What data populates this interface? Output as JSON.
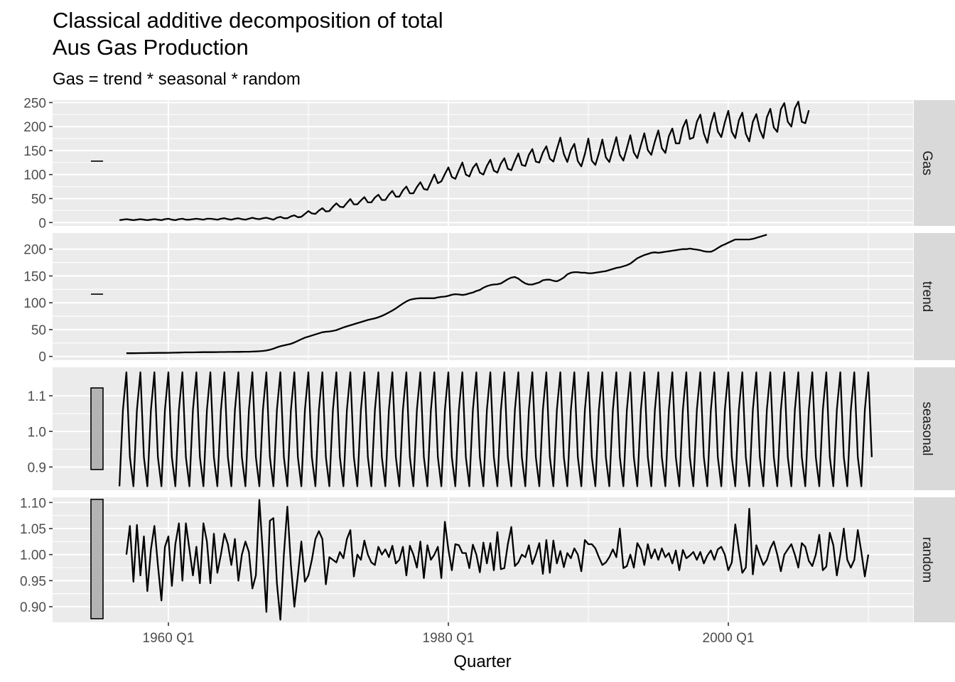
{
  "chart_data": {
    "type": "line",
    "title_lines": [
      "Classical additive decomposition of total",
      "Aus Gas Production"
    ],
    "subtitle": "Gas = trend * seasonal * random",
    "xlabel": "Quarter",
    "x_ticks": [
      "1960 Q1",
      "1980 Q1",
      "2000 Q1"
    ],
    "x_tick_years": [
      1960,
      1980,
      2000
    ],
    "x_range": [
      "1956 Q1",
      "2010 Q2"
    ],
    "series": [
      {
        "name": "Gas",
        "yticks": [
          0,
          50,
          100,
          150,
          200,
          250
        ],
        "ylim": [
          -7,
          255
        ],
        "values": [
          5,
          6,
          7,
          6,
          5,
          6,
          7,
          6,
          5,
          6,
          7,
          6,
          5,
          7,
          8,
          6,
          5,
          7,
          8,
          6,
          6,
          7,
          8,
          7,
          6,
          8,
          8,
          7,
          6,
          8,
          9,
          7,
          6,
          8,
          9,
          7,
          6,
          8,
          10,
          8,
          7,
          9,
          10,
          8,
          6,
          10,
          12,
          9,
          9,
          13,
          15,
          11,
          12,
          18,
          24,
          19,
          18,
          25,
          30,
          23,
          24,
          33,
          40,
          33,
          32,
          41,
          49,
          38,
          38,
          46,
          53,
          42,
          42,
          52,
          58,
          47,
          47,
          58,
          66,
          54,
          54,
          67,
          75,
          61,
          61,
          74,
          84,
          70,
          68,
          84,
          100,
          82,
          86,
          101,
          115,
          95,
          91,
          109,
          125,
          100,
          96,
          114,
          123,
          104,
          100,
          118,
          131,
          108,
          104,
          123,
          134,
          112,
          109,
          128,
          144,
          120,
          118,
          141,
          153,
          127,
          125,
          146,
          159,
          133,
          127,
          153,
          177,
          143,
          126,
          151,
          164,
          128,
          117,
          143,
          175,
          129,
          120,
          144,
          173,
          136,
          126,
          152,
          178,
          141,
          129,
          155,
          182,
          146,
          134,
          161,
          186,
          151,
          141,
          169,
          192,
          155,
          145,
          180,
          196,
          165,
          165,
          198,
          214,
          174,
          177,
          210,
          225,
          186,
          166,
          205,
          229,
          190,
          178,
          209,
          233,
          189,
          176,
          213,
          229,
          185,
          169,
          210,
          226,
          193,
          176,
          219,
          237,
          198,
          189,
          236,
          249,
          210,
          200,
          238,
          252,
          210,
          207,
          234
        ],
        "scale_bar": {
          "low": 128,
          "high": 128
        }
      },
      {
        "name": "trend",
        "yticks": [
          0,
          50,
          100,
          150,
          200
        ],
        "ylim": [
          -7,
          230
        ],
        "values": [
          6,
          6,
          6,
          6.1,
          6.2,
          6.3,
          6.4,
          6.5,
          6.5,
          6.6,
          6.6,
          6.7,
          6.8,
          6.9,
          7,
          7.2,
          7.4,
          7.5,
          7.6,
          7.6,
          7.7,
          7.8,
          7.9,
          7.9,
          8,
          8,
          8.1,
          8.2,
          8.2,
          8.3,
          8.4,
          8.5,
          8.5,
          8.6,
          8.7,
          8.8,
          9,
          9.3,
          9.7,
          10.2,
          11,
          12.5,
          14.5,
          17,
          19,
          20.5,
          22,
          23.5,
          26,
          29,
          32,
          35,
          37,
          39,
          41,
          43,
          45,
          46,
          46.5,
          47.5,
          49,
          51.5,
          54,
          56,
          58,
          60,
          62,
          64,
          66,
          68,
          69.5,
          71,
          73,
          75.5,
          78.5,
          82,
          85.5,
          89.5,
          94,
          98.5,
          102.5,
          105.5,
          107,
          108,
          108.5,
          108.5,
          108.5,
          108.5,
          108.5,
          110,
          111,
          111.5,
          113,
          115,
          116,
          115.5,
          114.5,
          115.5,
          117.5,
          119,
          122,
          124,
          128,
          131,
          133,
          134,
          134.5,
          136,
          140,
          144,
          147,
          148,
          145,
          140,
          136,
          134,
          134,
          136,
          138,
          142,
          143,
          143,
          141,
          140,
          143,
          147,
          153,
          156,
          157,
          157,
          156,
          156,
          155,
          155,
          156,
          157,
          158,
          159,
          161,
          163,
          165,
          166,
          168,
          170,
          173,
          178,
          183,
          186,
          189,
          191,
          193,
          194,
          193,
          194,
          195,
          196,
          197,
          198,
          199,
          200,
          200,
          201,
          200,
          199,
          198,
          196,
          195,
          195,
          198,
          202,
          206,
          209,
          212,
          215,
          218,
          218,
          218,
          218,
          218,
          219,
          221,
          223,
          225,
          227
        ],
        "scale_bar": {
          "low": 116,
          "high": 116
        }
      },
      {
        "name": "seasonal",
        "yticks": [
          0.9,
          1.0,
          1.1
        ],
        "ylim": [
          0.835,
          1.18
        ],
        "pattern": [
          0.846,
          1.06,
          1.166,
          0.928
        ],
        "scale_bar": {
          "low": 0.893,
          "high": 1.122
        }
      },
      {
        "name": "random",
        "yticks": [
          0.9,
          0.95,
          1.0,
          1.05,
          1.1
        ],
        "ylim": [
          0.87,
          1.11
        ],
        "values": [
          1.0,
          1.055,
          0.948,
          1.057,
          0.96,
          1.035,
          0.93,
          1.01,
          1.055,
          0.98,
          0.912,
          1.015,
          1.035,
          0.94,
          1.02,
          1.06,
          0.95,
          1.06,
          1.01,
          0.96,
          1.015,
          0.945,
          1.06,
          1.025,
          0.945,
          1.04,
          0.965,
          1.0,
          1.04,
          1.02,
          0.98,
          1.03,
          0.95,
          1.0,
          1.025,
          1.005,
          0.935,
          0.96,
          1.105,
          1.0,
          0.89,
          1.065,
          1.07,
          0.945,
          0.875,
          1.0,
          1.092,
          0.98,
          0.9,
          0.96,
          1.025,
          0.948,
          0.96,
          0.99,
          1.03,
          1.045,
          1.03,
          0.943,
          0.995,
          0.99,
          0.985,
          1.005,
          0.993,
          1.03,
          1.047,
          0.958,
          1.0,
          0.99,
          1.027,
          1.0,
          0.985,
          0.98,
          1.015,
          1.0,
          1.01,
          0.995,
          1.017,
          0.983,
          0.99,
          1.015,
          0.96,
          1.017,
          1.0,
          0.975,
          1.025,
          0.955,
          1.018,
          0.99,
          1.0,
          1.015,
          0.955,
          1.063,
          1.01,
          0.97,
          1.02,
          1.018,
          1.003,
          1.003,
          0.974,
          1.019,
          1.0,
          0.966,
          1.023,
          0.983,
          1.022,
          0.97,
          1.043,
          0.972,
          0.974,
          1.02,
          1.053,
          0.978,
          0.985,
          1.0,
          0.995,
          1.018,
          0.982,
          1.0,
          1.022,
          0.963,
          1.028,
          0.965,
          1.027,
          0.983,
          1.007,
          0.976,
          1.003,
          0.993,
          1.012,
          1.0,
          0.968,
          1.028,
          1.02,
          1.02,
          1.012,
          0.995,
          0.98,
          0.985,
          0.995,
          1.01,
          0.995,
          1.05,
          0.974,
          0.978,
          1.0,
          0.975,
          1.022,
          1.01,
          0.98,
          1.02,
          0.993,
          1.01,
          0.99,
          1.012,
          0.995,
          1.003,
          0.983,
          1.008,
          0.97,
          1.009,
          0.993,
          0.998,
          1.005,
          0.99,
          1.005,
          0.983,
          0.998,
          1.008,
          0.99,
          1.01,
          1.015,
          1.0,
          0.97,
          0.985,
          1.058,
          1.008,
          0.965,
          0.975,
          1.088,
          0.962,
          1.018,
          0.998,
          0.98,
          0.99,
          1.012,
          1.025,
          1.0,
          0.968,
          1.0,
          1.01,
          1.02,
          1.0,
          0.975,
          1.022,
          1.015,
          0.988,
          0.978,
          1.0,
          1.038,
          0.97,
          0.977,
          1.042,
          1.018,
          0.96,
          1.0,
          1.05,
          0.99,
          0.975,
          0.99,
          1.047,
          1.005,
          0.958,
          1.0
        ],
        "scale_bar": {
          "low": 0.877,
          "high": 1.106
        }
      }
    ],
    "grid": true,
    "legend": "none"
  }
}
